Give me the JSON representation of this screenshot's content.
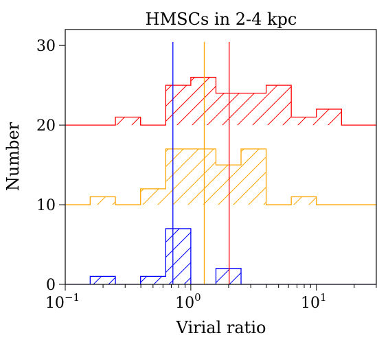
{
  "chart_data": {
    "type": "histogram",
    "title": "HMSCs in 2-4 kpc",
    "xlabel": "Virial ratio",
    "ylabel": "Number",
    "xscale": "log",
    "xlim": [
      0.1,
      30
    ],
    "ylim": [
      0,
      32
    ],
    "x_major_ticks": [
      {
        "value": 0.1,
        "base": "10",
        "exp": "−1"
      },
      {
        "value": 1,
        "base": "10",
        "exp": "0"
      },
      {
        "value": 10,
        "base": "10",
        "exp": "1"
      }
    ],
    "y_ticks": [
      0,
      10,
      20,
      30
    ],
    "grid": false,
    "legend": "none",
    "bin_edges": [
      0.1,
      0.158,
      0.251,
      0.398,
      0.631,
      1.0,
      1.585,
      2.512,
      3.981,
      6.31,
      10.0,
      15.85,
      25.12
    ],
    "series": [
      {
        "color": "#0000ff",
        "offset": 0,
        "counts": [
          0,
          1,
          0,
          1,
          7,
          0,
          2,
          0,
          0,
          0,
          0,
          0
        ],
        "median": 0.72
      },
      {
        "color": "#ffa500",
        "offset": 10,
        "counts": [
          0,
          1,
          0,
          2,
          7,
          7,
          5,
          7,
          0,
          1,
          0,
          0
        ],
        "median": 1.28
      },
      {
        "color": "#ff0000",
        "offset": 20,
        "counts": [
          0,
          0,
          1,
          0,
          5,
          6,
          4,
          4,
          5,
          1,
          2,
          0
        ],
        "median": 2.02
      }
    ]
  }
}
